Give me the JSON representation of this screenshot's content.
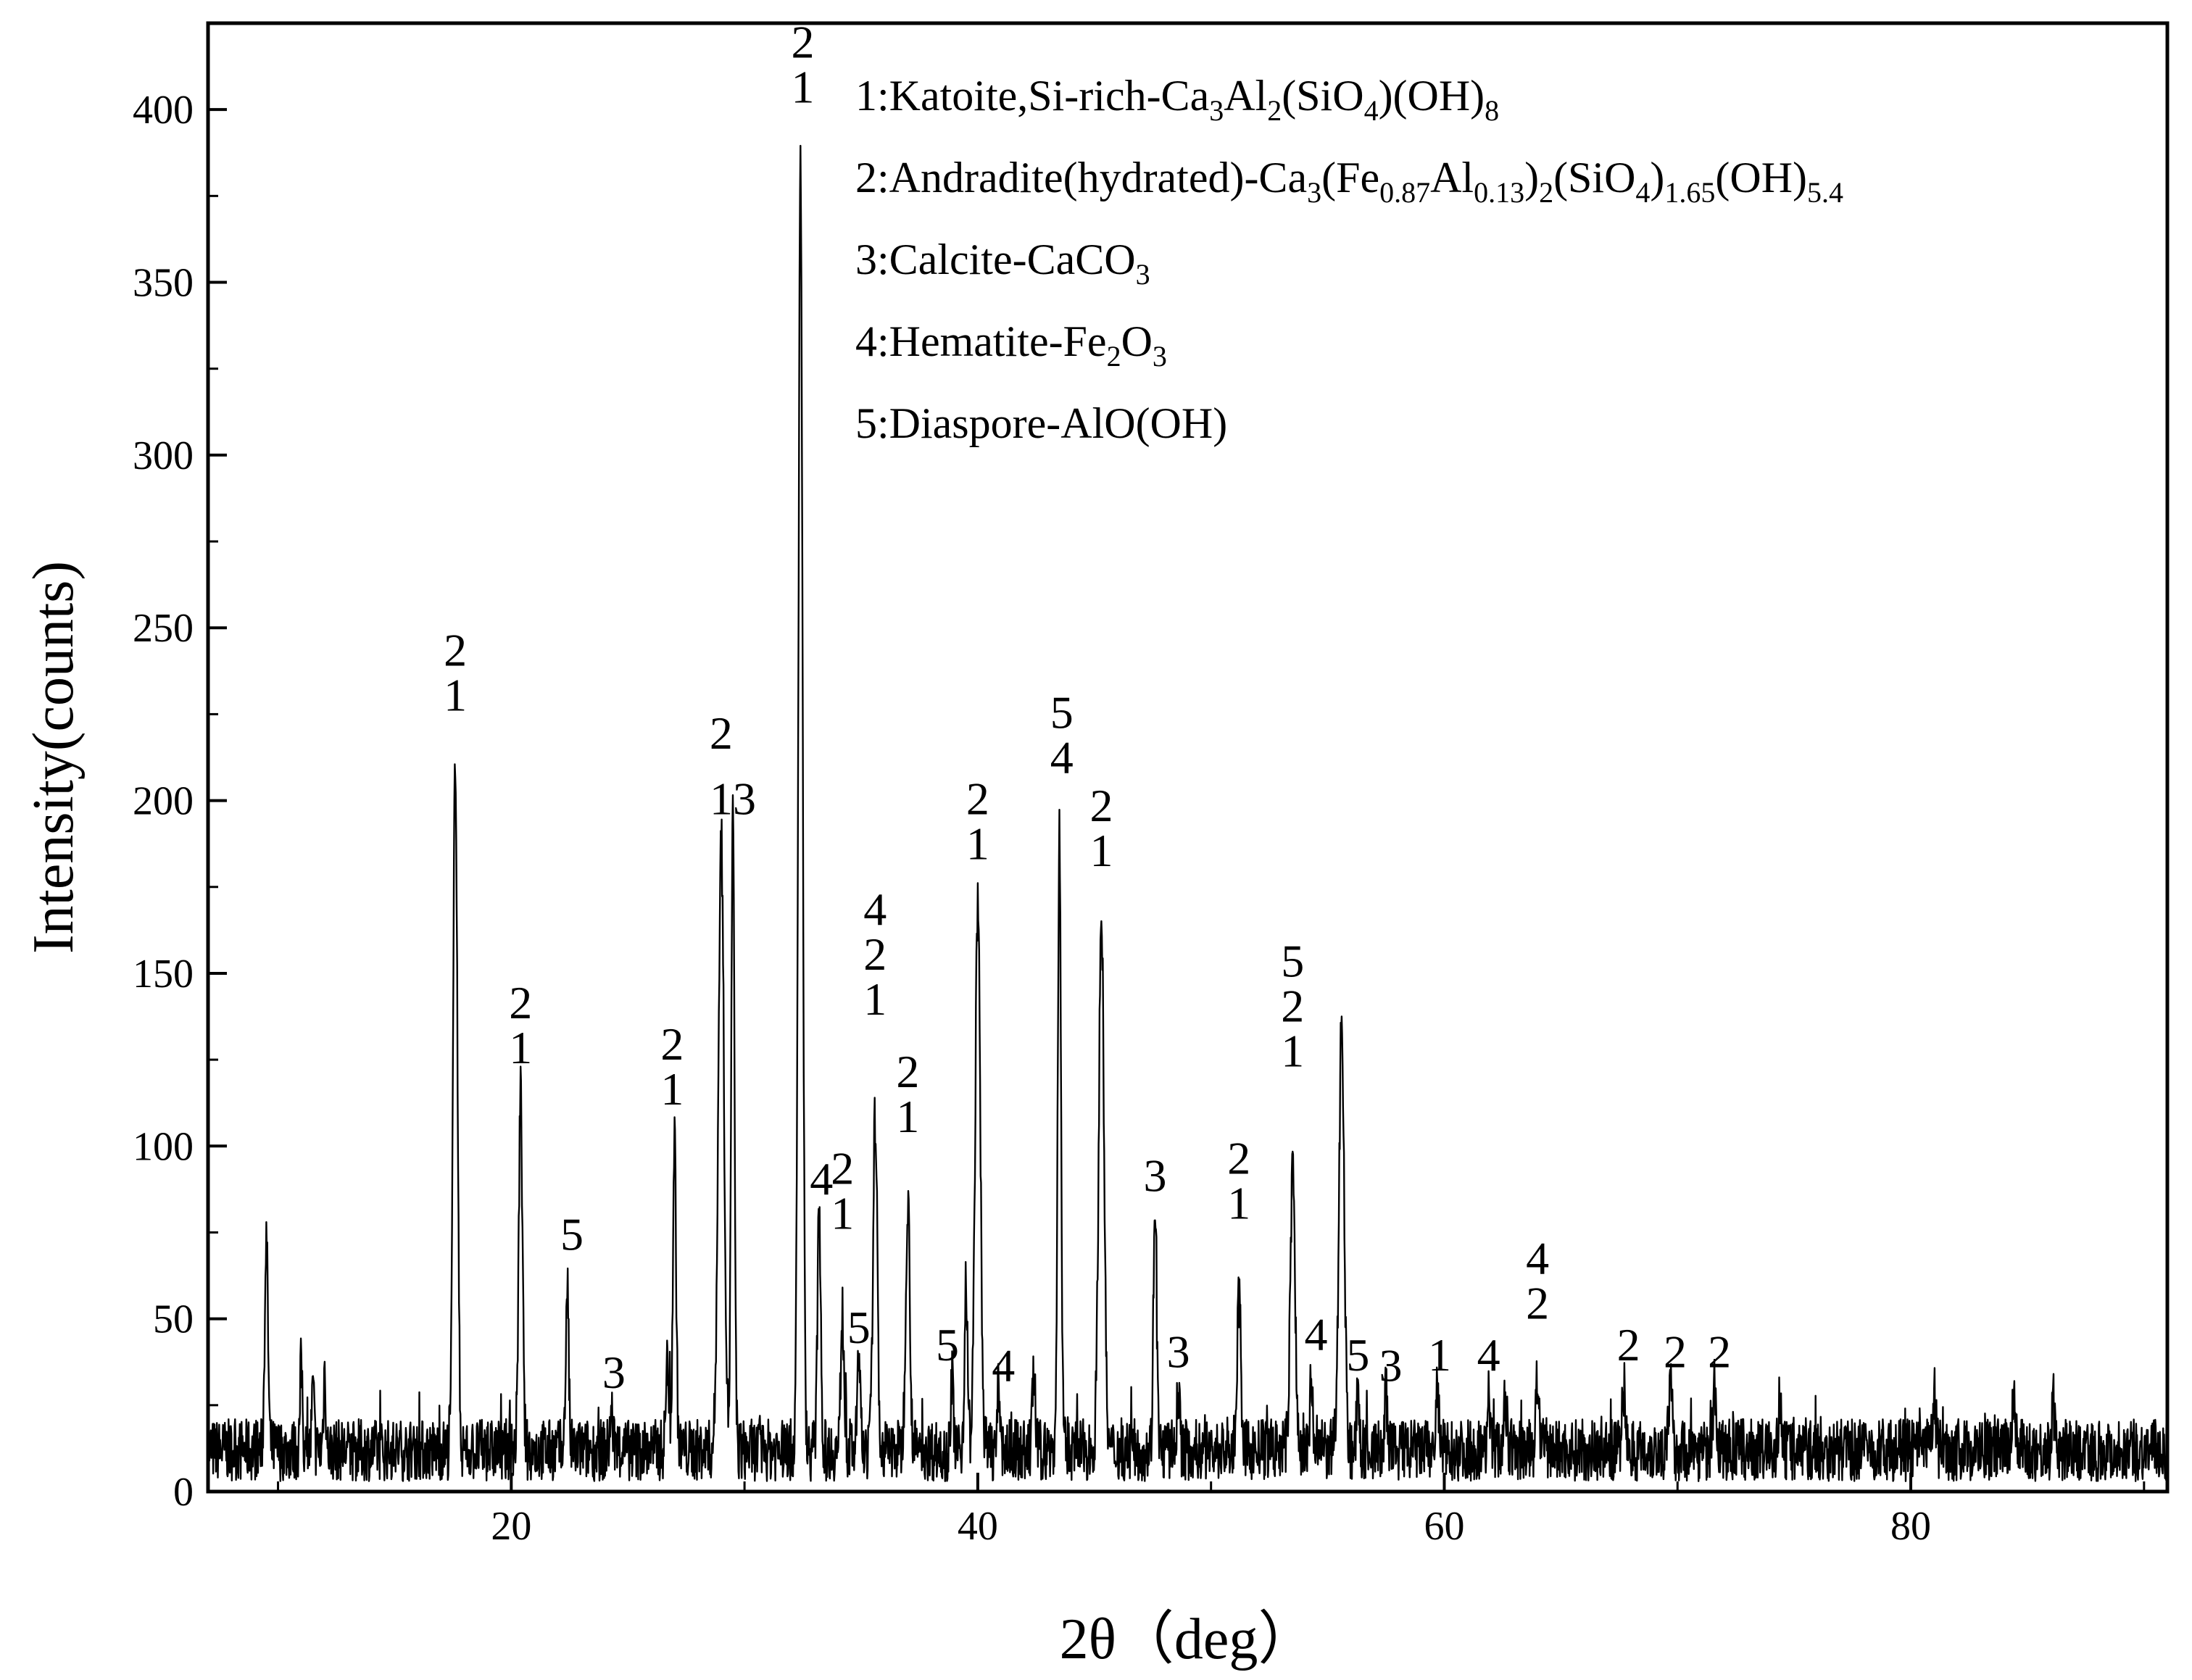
{
  "chart_data": {
    "type": "line",
    "xlabel": "2θ（deg）",
    "ylabel": "Intensity(counts)",
    "xlim": [
      7,
      91
    ],
    "ylim": [
      0,
      425
    ],
    "xticks": [
      20,
      40,
      60,
      80
    ],
    "yticks": [
      0,
      50,
      100,
      150,
      200,
      250,
      300,
      350,
      400
    ],
    "baseline": 12,
    "noise_amplitude": 9,
    "peaks": [
      {
        "x": 9.5,
        "y": 73,
        "w": 0.07
      },
      {
        "x": 11.0,
        "y": 38,
        "w": 0.05
      },
      {
        "x": 11.5,
        "y": 30,
        "w": 0.05
      },
      {
        "x": 12.0,
        "y": 35,
        "w": 0.05
      },
      {
        "x": 17.6,
        "y": 215,
        "w": 0.09
      },
      {
        "x": 20.4,
        "y": 115,
        "w": 0.08
      },
      {
        "x": 22.4,
        "y": 61,
        "w": 0.06
      },
      {
        "x": 24.3,
        "y": 22,
        "w": 0.07
      },
      {
        "x": 26.7,
        "y": 38,
        "w": 0.07
      },
      {
        "x": 27.0,
        "y": 102,
        "w": 0.07
      },
      {
        "x": 29.0,
        "y": 190,
        "w": 0.12
      },
      {
        "x": 29.5,
        "y": 195,
        "w": 0.07
      },
      {
        "x": 32.4,
        "y": 384,
        "w": 0.09
      },
      {
        "x": 33.2,
        "y": 82,
        "w": 0.07
      },
      {
        "x": 34.2,
        "y": 52,
        "w": 0.07
      },
      {
        "x": 34.9,
        "y": 40,
        "w": 0.06
      },
      {
        "x": 35.6,
        "y": 108,
        "w": 0.09
      },
      {
        "x": 37.0,
        "y": 85,
        "w": 0.09
      },
      {
        "x": 38.9,
        "y": 32,
        "w": 0.06
      },
      {
        "x": 39.5,
        "y": 58,
        "w": 0.07
      },
      {
        "x": 40.0,
        "y": 170,
        "w": 0.11
      },
      {
        "x": 40.9,
        "y": 30,
        "w": 0.06
      },
      {
        "x": 42.4,
        "y": 35,
        "w": 0.06
      },
      {
        "x": 43.5,
        "y": 190,
        "w": 0.07
      },
      {
        "x": 45.3,
        "y": 168,
        "w": 0.11
      },
      {
        "x": 47.6,
        "y": 84,
        "w": 0.07
      },
      {
        "x": 48.6,
        "y": 30,
        "w": 0.06
      },
      {
        "x": 51.2,
        "y": 56,
        "w": 0.08
      },
      {
        "x": 53.5,
        "y": 94,
        "w": 0.1
      },
      {
        "x": 54.3,
        "y": 32,
        "w": 0.06
      },
      {
        "x": 55.6,
        "y": 137,
        "w": 0.11
      },
      {
        "x": 56.3,
        "y": 27,
        "w": 0.06
      },
      {
        "x": 57.5,
        "y": 26,
        "w": 0.06
      },
      {
        "x": 59.7,
        "y": 30,
        "w": 0.06
      },
      {
        "x": 61.9,
        "y": 28,
        "w": 0.06
      },
      {
        "x": 62.6,
        "y": 28,
        "w": 0.06
      },
      {
        "x": 64.0,
        "y": 33,
        "w": 0.07
      },
      {
        "x": 67.7,
        "y": 30,
        "w": 0.07
      },
      {
        "x": 69.7,
        "y": 30,
        "w": 0.07
      },
      {
        "x": 71.6,
        "y": 30,
        "w": 0.07
      },
      {
        "x": 74.4,
        "y": 24,
        "w": 0.06
      },
      {
        "x": 81.0,
        "y": 28,
        "w": 0.07
      },
      {
        "x": 84.4,
        "y": 29,
        "w": 0.07
      },
      {
        "x": 86.1,
        "y": 26,
        "w": 0.06
      }
    ],
    "peak_labels": [
      {
        "x": 17.6,
        "y": 226,
        "lines": [
          "2",
          "1"
        ]
      },
      {
        "x": 20.4,
        "y": 124,
        "lines": [
          "2",
          "1"
        ]
      },
      {
        "x": 22.6,
        "y": 70,
        "lines": [
          "5"
        ]
      },
      {
        "x": 24.4,
        "y": 30,
        "lines": [
          "3"
        ]
      },
      {
        "x": 26.9,
        "y": 112,
        "lines": [
          "2",
          "1"
        ]
      },
      {
        "x": 29.0,
        "y": 215,
        "lines": [
          "2"
        ]
      },
      {
        "x": 29.5,
        "y": 196,
        "lines": [
          "13"
        ]
      },
      {
        "x": 32.5,
        "y": 402,
        "lines": [
          "2",
          "1"
        ]
      },
      {
        "x": 33.3,
        "y": 86,
        "lines": [
          "4"
        ]
      },
      {
        "x": 34.2,
        "y": 76,
        "lines": [
          "2",
          "1"
        ]
      },
      {
        "x": 34.9,
        "y": 43,
        "lines": [
          "5"
        ]
      },
      {
        "x": 35.6,
        "y": 138,
        "lines": [
          "4",
          "2",
          "1"
        ]
      },
      {
        "x": 37.0,
        "y": 104,
        "lines": [
          "2",
          "1"
        ]
      },
      {
        "x": 38.7,
        "y": 38,
        "lines": [
          "5"
        ]
      },
      {
        "x": 41.1,
        "y": 32,
        "lines": [
          "4"
        ]
      },
      {
        "x": 40.0,
        "y": 183,
        "lines": [
          "2",
          "1"
        ]
      },
      {
        "x": 43.6,
        "y": 208,
        "lines": [
          "5",
          "4"
        ]
      },
      {
        "x": 45.3,
        "y": 181,
        "lines": [
          "2",
          "1"
        ]
      },
      {
        "x": 47.6,
        "y": 87,
        "lines": [
          "3"
        ]
      },
      {
        "x": 48.6,
        "y": 36,
        "lines": [
          "3"
        ]
      },
      {
        "x": 51.2,
        "y": 79,
        "lines": [
          "2",
          "1"
        ]
      },
      {
        "x": 53.5,
        "y": 123,
        "lines": [
          "5",
          "2",
          "1"
        ]
      },
      {
        "x": 54.5,
        "y": 41,
        "lines": [
          "4"
        ]
      },
      {
        "x": 56.3,
        "y": 35,
        "lines": [
          "5"
        ]
      },
      {
        "x": 57.7,
        "y": 32,
        "lines": [
          "3"
        ]
      },
      {
        "x": 59.8,
        "y": 35,
        "lines": [
          "1"
        ]
      },
      {
        "x": 61.9,
        "y": 35,
        "lines": [
          "4"
        ]
      },
      {
        "x": 64.0,
        "y": 50,
        "lines": [
          "4",
          "2"
        ]
      },
      {
        "x": 67.9,
        "y": 38,
        "lines": [
          "2"
        ]
      },
      {
        "x": 69.9,
        "y": 36,
        "lines": [
          "2"
        ]
      },
      {
        "x": 71.8,
        "y": 36,
        "lines": [
          "2"
        ]
      }
    ],
    "legend": [
      {
        "parts": [
          [
            "1:Katoite,Si-rich-Ca",
            "n"
          ],
          [
            "3",
            "s"
          ],
          [
            "Al",
            "n"
          ],
          [
            "2",
            "s"
          ],
          [
            "(SiO",
            "n"
          ],
          [
            "4",
            "s"
          ],
          [
            ")(OH)",
            "n"
          ],
          [
            "8",
            "s"
          ]
        ]
      },
      {
        "parts": [
          [
            "2:Andradite(hydrated)-Ca",
            "n"
          ],
          [
            "3",
            "s"
          ],
          [
            "(Fe",
            "n"
          ],
          [
            "0.87",
            "s"
          ],
          [
            "Al",
            "n"
          ],
          [
            "0.13",
            "s"
          ],
          [
            ")",
            "n"
          ],
          [
            "2",
            "s"
          ],
          [
            "(SiO",
            "n"
          ],
          [
            "4",
            "s"
          ],
          [
            ")",
            "n"
          ],
          [
            "1.65",
            "s"
          ],
          [
            "(OH)",
            "n"
          ],
          [
            "5.4",
            "s"
          ]
        ]
      },
      {
        "parts": [
          [
            "3:Calcite-CaCO",
            "n"
          ],
          [
            "3",
            "s"
          ]
        ]
      },
      {
        "parts": [
          [
            "4:Hematite-Fe",
            "n"
          ],
          [
            "2",
            "s"
          ],
          [
            "O",
            "n"
          ],
          [
            "3",
            "s"
          ]
        ]
      },
      {
        "parts": [
          [
            "5:Diaspore-AlO(OH)",
            "n"
          ]
        ]
      }
    ],
    "legend_position": "top-right",
    "grid": false,
    "line_color": "#000000"
  }
}
